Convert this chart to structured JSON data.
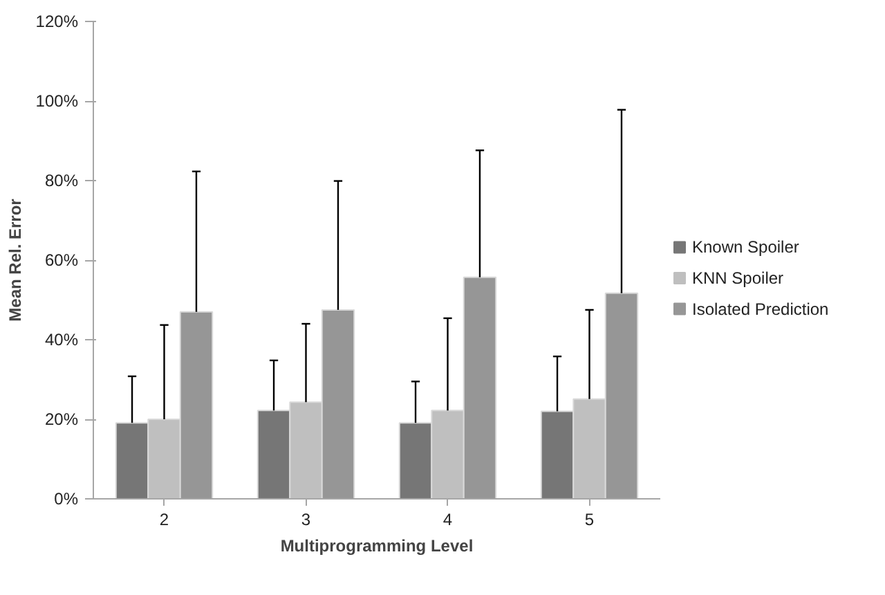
{
  "chart_data": {
    "type": "bar",
    "xlabel": "Multiprogramming Level",
    "ylabel": "Mean Rel. Error",
    "categories": [
      "2",
      "3",
      "4",
      "5"
    ],
    "series": [
      {
        "name": "Known Spoiler",
        "color": "#767676",
        "values": [
          19.1,
          22.2,
          19.1,
          22.0
        ],
        "errors": [
          [
            19.1,
            30.8
          ],
          [
            22.2,
            34.8
          ],
          [
            19.1,
            29.5
          ],
          [
            22.0,
            35.8
          ]
        ]
      },
      {
        "name": "KNN Spoiler",
        "color": "#bfbfbf",
        "values": [
          20.0,
          24.3,
          22.2,
          25.1
        ],
        "errors": [
          [
            20.0,
            43.7
          ],
          [
            24.3,
            44.0
          ],
          [
            22.2,
            45.4
          ],
          [
            25.1,
            47.5
          ]
        ]
      },
      {
        "name": "Isolated Prediction",
        "color": "#969696",
        "values": [
          47.0,
          47.5,
          55.7,
          51.7
        ],
        "errors": [
          [
            47.0,
            82.3
          ],
          [
            47.5,
            79.9
          ],
          [
            55.7,
            87.6
          ],
          [
            51.7,
            97.8
          ]
        ]
      }
    ],
    "ylim": [
      0,
      120
    ],
    "yticks": [
      {
        "value": 0,
        "label": "0%"
      },
      {
        "value": 20,
        "label": "20%"
      },
      {
        "value": 40,
        "label": "40%"
      },
      {
        "value": 60,
        "label": "60%"
      },
      {
        "value": 80,
        "label": "80%"
      },
      {
        "value": 100,
        "label": "100%"
      },
      {
        "value": 120,
        "label": "120%"
      }
    ],
    "grid": false,
    "legend": "right"
  }
}
